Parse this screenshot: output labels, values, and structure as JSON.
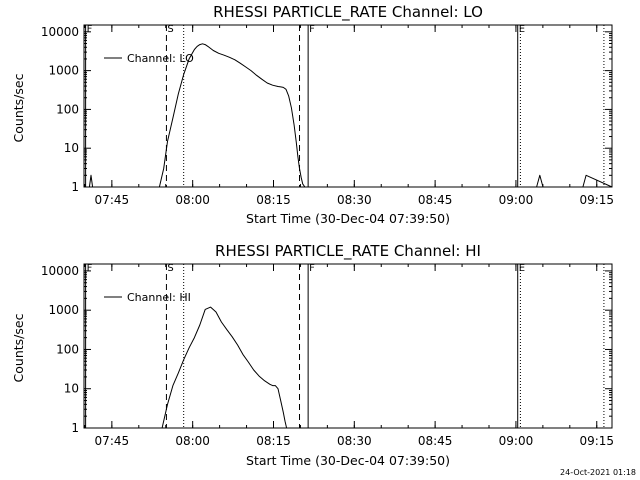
{
  "footer_timestamp": "24-Oct-2021 01:18",
  "chart_data": [
    {
      "type": "line",
      "title": "RHESSI PARTICLE_RATE Channel: LO",
      "xlabel": "Start Time (30-Dec-04 07:39:50)",
      "ylabel": "Counts/sec",
      "x_unit": "minutes after 07:39:50",
      "xlim": [
        0.0,
        98.0
      ],
      "ylim": [
        1,
        15000
      ],
      "yscale": "log",
      "grid": false,
      "legend_position": "top-left",
      "x_ticks": [
        {
          "value": 5.17,
          "label": "07:45"
        },
        {
          "value": 20.17,
          "label": "08:00"
        },
        {
          "value": 35.17,
          "label": "08:15"
        },
        {
          "value": 50.17,
          "label": "08:30"
        },
        {
          "value": 65.17,
          "label": "08:45"
        },
        {
          "value": 80.17,
          "label": "09:00"
        },
        {
          "value": 95.17,
          "label": "09:15"
        }
      ],
      "y_ticks": [
        {
          "value": 1,
          "label": "1"
        },
        {
          "value": 10,
          "label": "10"
        },
        {
          "value": 100,
          "label": "100"
        },
        {
          "value": 1000,
          "label": "1000"
        },
        {
          "value": 10000,
          "label": "10000"
        }
      ],
      "markers": [
        {
          "label": "F",
          "x": 0.3,
          "style": "solid"
        },
        {
          "label": "S",
          "x": 15.3,
          "style": "dashed"
        },
        {
          "label": "",
          "x": 18.5,
          "style": "dotted"
        },
        {
          "label": "",
          "x": 40.0,
          "style": "dashed"
        },
        {
          "label": "F",
          "x": 41.6,
          "style": "solid"
        },
        {
          "label": "E",
          "x": 80.5,
          "style": "solid"
        },
        {
          "label": "",
          "x": 81.0,
          "style": "dotted"
        },
        {
          "label": "",
          "x": 96.5,
          "style": "dotted"
        }
      ],
      "series": [
        {
          "name": "Channel: LO",
          "x": [
            0.5,
            1.0,
            1.3,
            1.6,
            2.0,
            14.0,
            14.8,
            15.5,
            16.5,
            17.5,
            18.5,
            19.5,
            20.5,
            21.0,
            21.5,
            22.0,
            22.5,
            23.0,
            24.0,
            25.0,
            26.0,
            27.0,
            28.0,
            29.0,
            30.0,
            31.0,
            32.0,
            33.0,
            34.0,
            35.0,
            36.0,
            36.5,
            37.0,
            37.5,
            38.0,
            38.5,
            39.0,
            39.4,
            39.7,
            40.0,
            40.3,
            40.6,
            41.0,
            41.5,
            78.0,
            79.5,
            80.3,
            81.0,
            82.0,
            84.0,
            84.6,
            85.2,
            92.0,
            92.6,
            93.2,
            98.0
          ],
          "y": [
            1,
            1,
            2,
            1,
            1,
            1,
            3,
            15,
            60,
            250,
            800,
            2000,
            3500,
            4200,
            4700,
            4900,
            4700,
            4200,
            3300,
            2800,
            2500,
            2200,
            1900,
            1550,
            1250,
            1000,
            760,
            600,
            480,
            420,
            390,
            380,
            370,
            330,
            220,
            110,
            40,
            14,
            6,
            3,
            1.8,
            1.2,
            1,
            1,
            1,
            1,
            1,
            1,
            1,
            1,
            2,
            1,
            1,
            1,
            2,
            1
          ]
        }
      ]
    },
    {
      "type": "line",
      "title": "RHESSI PARTICLE_RATE Channel: HI",
      "xlabel": "Start Time (30-Dec-04 07:39:50)",
      "ylabel": "Counts/sec",
      "x_unit": "minutes after 07:39:50",
      "xlim": [
        0.0,
        98.0
      ],
      "ylim": [
        1,
        15000
      ],
      "yscale": "log",
      "grid": false,
      "legend_position": "top-left",
      "x_ticks": [
        {
          "value": 5.17,
          "label": "07:45"
        },
        {
          "value": 20.17,
          "label": "08:00"
        },
        {
          "value": 35.17,
          "label": "08:15"
        },
        {
          "value": 50.17,
          "label": "08:30"
        },
        {
          "value": 65.17,
          "label": "08:45"
        },
        {
          "value": 80.17,
          "label": "09:00"
        },
        {
          "value": 95.17,
          "label": "09:15"
        }
      ],
      "y_ticks": [
        {
          "value": 1,
          "label": "1"
        },
        {
          "value": 10,
          "label": "10"
        },
        {
          "value": 100,
          "label": "100"
        },
        {
          "value": 1000,
          "label": "1000"
        },
        {
          "value": 10000,
          "label": "10000"
        }
      ],
      "markers": [
        {
          "label": "F",
          "x": 0.3,
          "style": "solid"
        },
        {
          "label": "S",
          "x": 15.3,
          "style": "dashed"
        },
        {
          "label": "",
          "x": 18.5,
          "style": "dotted"
        },
        {
          "label": "",
          "x": 40.0,
          "style": "dashed"
        },
        {
          "label": "F",
          "x": 41.6,
          "style": "solid"
        },
        {
          "label": "E",
          "x": 80.5,
          "style": "solid"
        },
        {
          "label": "",
          "x": 81.0,
          "style": "dotted"
        },
        {
          "label": "",
          "x": 96.5,
          "style": "dotted"
        }
      ],
      "series": [
        {
          "name": "Channel: HI",
          "x": [
            14.5,
            15.5,
            16.5,
            17.5,
            18.5,
            19.5,
            20.5,
            21.5,
            22.5,
            23.5,
            24.5,
            25.5,
            26.5,
            27.5,
            28.5,
            29.5,
            30.5,
            31.5,
            32.5,
            33.5,
            34.5,
            35.0,
            35.5,
            36.0,
            36.5,
            37.0,
            37.3,
            37.6
          ],
          "y": [
            1,
            4,
            12,
            25,
            55,
            110,
            200,
            420,
            1050,
            1200,
            900,
            500,
            320,
            210,
            130,
            75,
            48,
            30,
            21,
            16,
            13,
            12,
            12,
            10,
            5,
            2.5,
            1.5,
            1
          ]
        }
      ]
    }
  ]
}
